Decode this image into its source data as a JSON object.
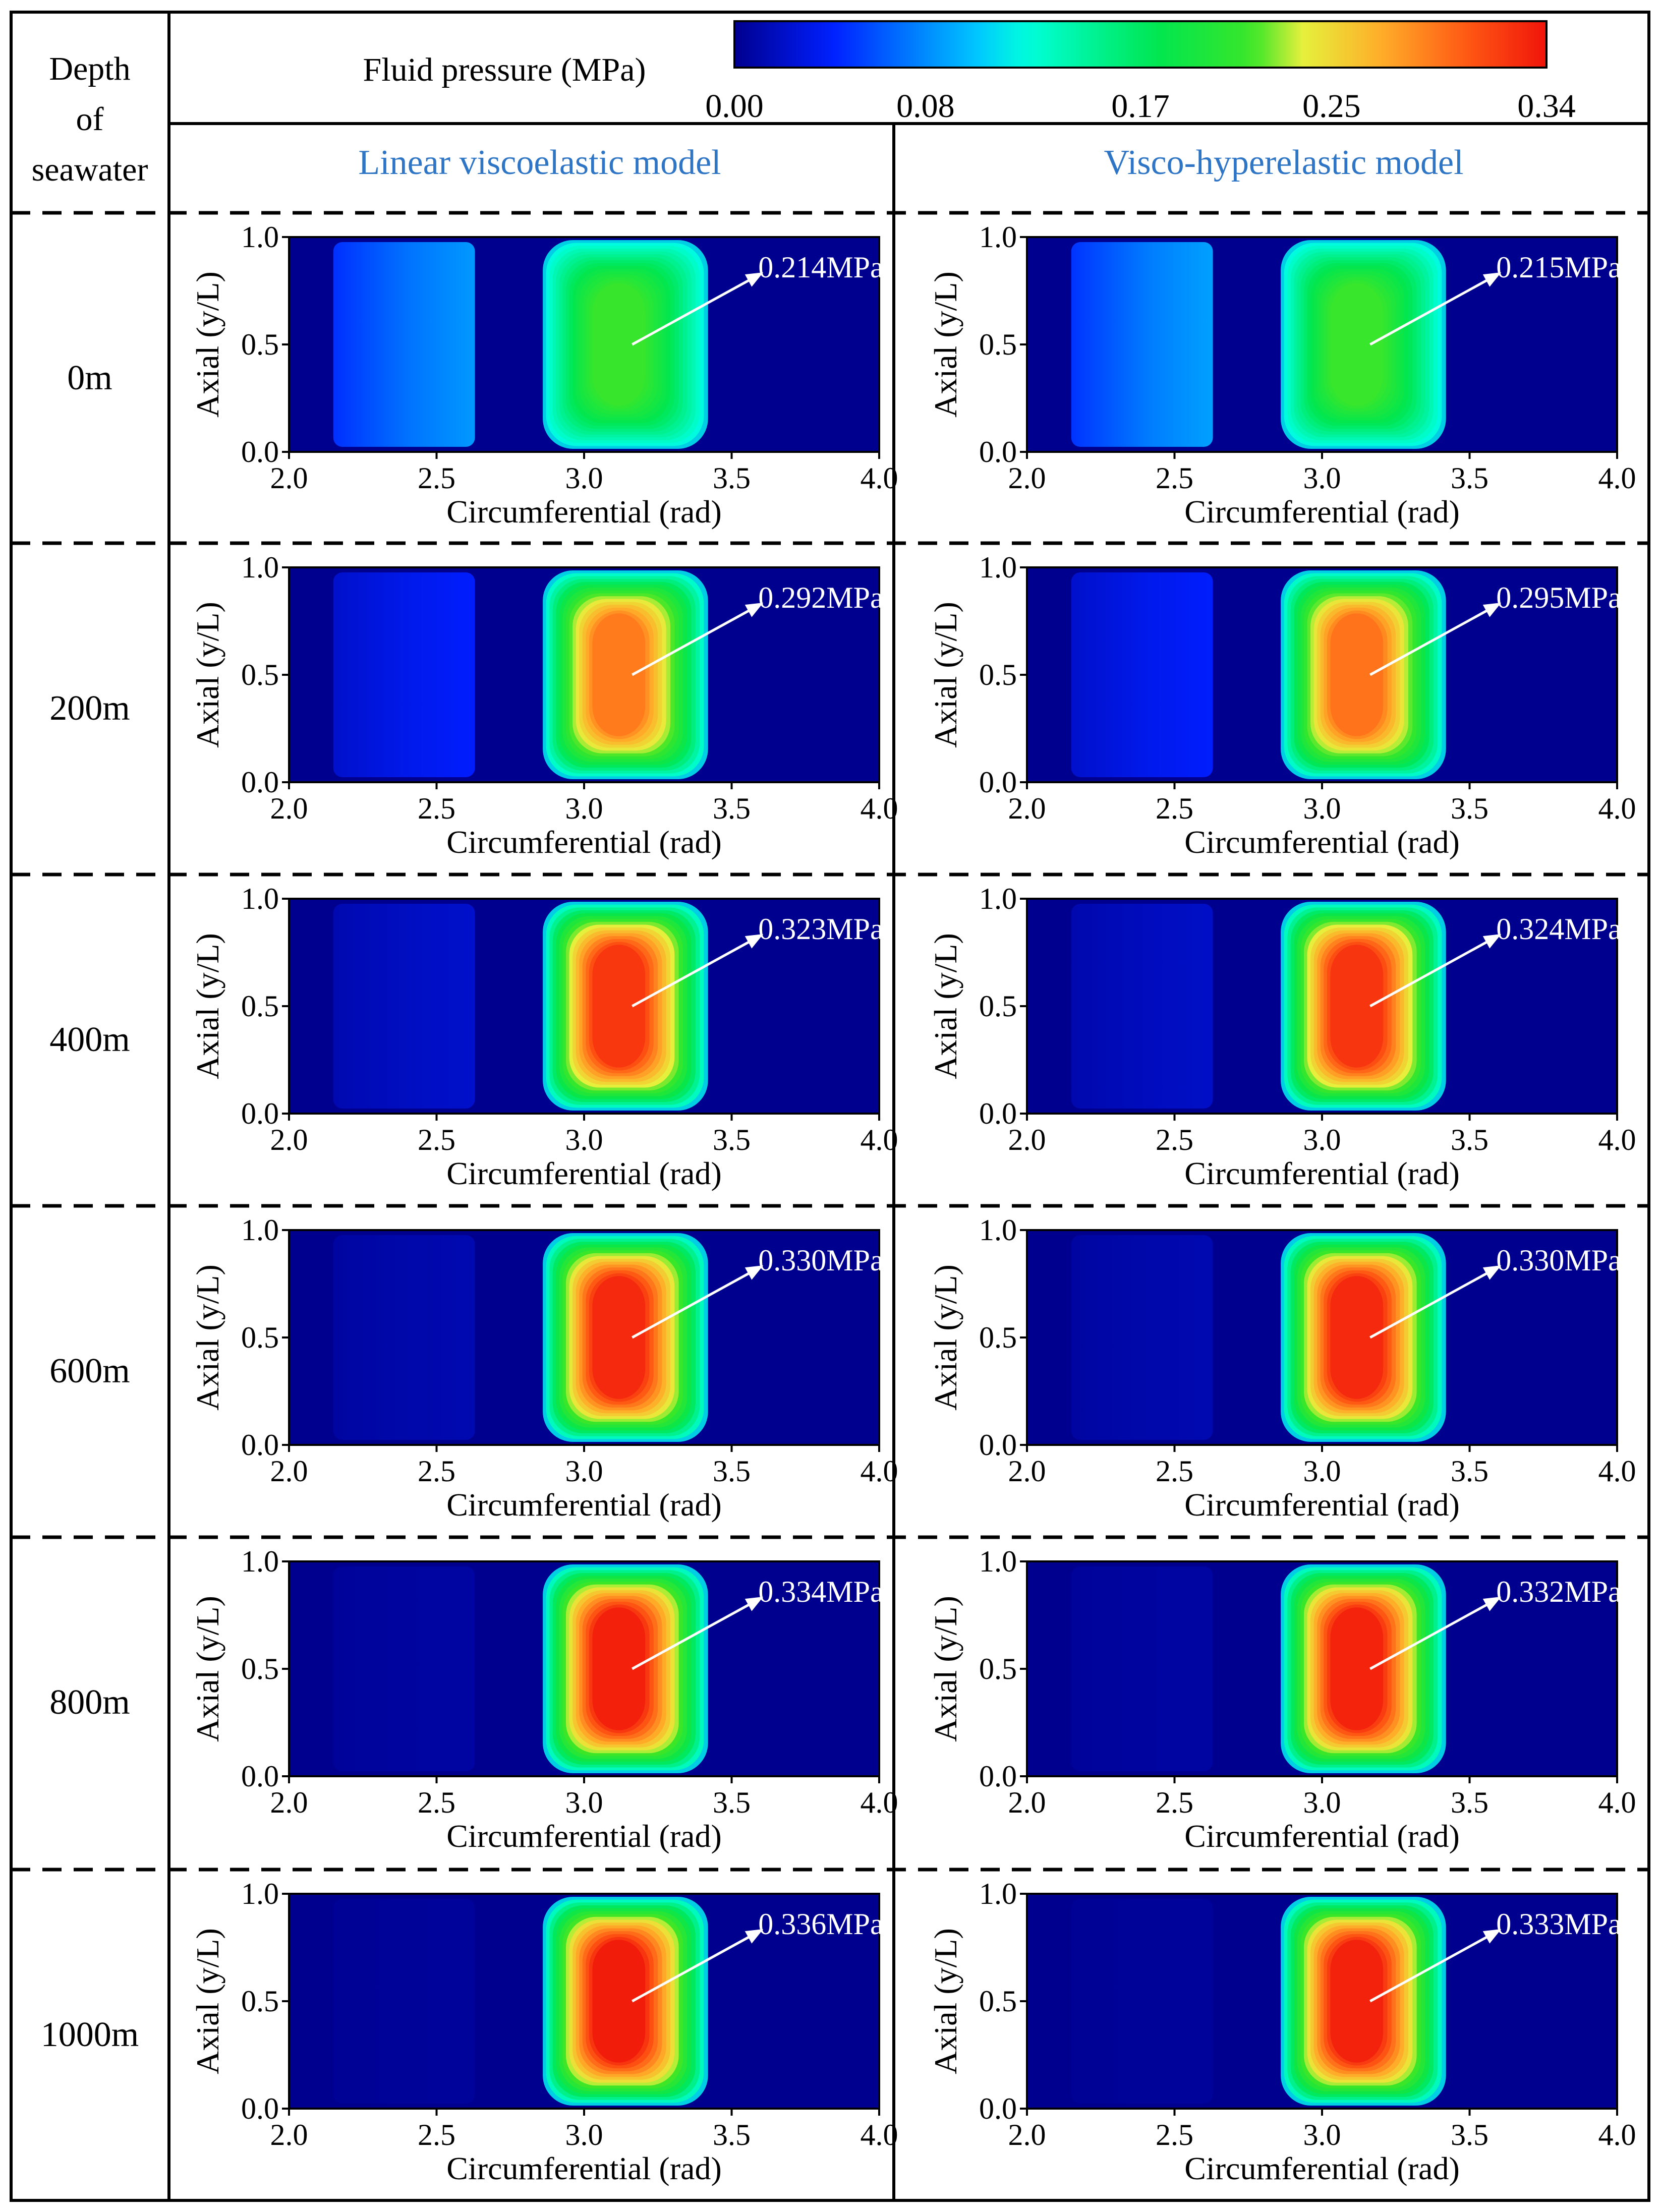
{
  "header": {
    "depth_label": [
      "Depth",
      "of",
      "seawater"
    ],
    "colorbar_title": "Fluid pressure (MPa)",
    "column_titles": [
      "Linear viscoelastic model",
      "Visco-hyperelastic model"
    ]
  },
  "colors": {
    "column_title": "#2E75C6",
    "border": "#000000",
    "annotation": "#FFFFFF",
    "background_field": "#00008F"
  },
  "chart_data": {
    "type": "heatmap",
    "title": "Fluid pressure (MPa)",
    "xlabel": "Circumferential (rad)",
    "ylabel": "Axial (y/L)",
    "xlim": [
      2.0,
      4.0
    ],
    "ylim": [
      0.0,
      1.0
    ],
    "xticks": [
      "2.0",
      "2.5",
      "3.0",
      "3.5",
      "4.0"
    ],
    "yticks": [
      "0.0",
      "0.5",
      "1.0"
    ],
    "colorbar": {
      "min": 0.0,
      "max": 0.34,
      "ticks": [
        "0.00",
        "0.08",
        "0.17",
        "0.25",
        "0.34"
      ],
      "colormap": "jet"
    },
    "models": [
      "Linear viscoelastic model",
      "Visco-hyperelastic model"
    ],
    "depths": [
      "0m",
      "200m",
      "400m",
      "600m",
      "800m",
      "1000m"
    ],
    "peak_pressure_mpa": [
      [
        0.214,
        0.215
      ],
      [
        0.292,
        0.295
      ],
      [
        0.323,
        0.324
      ],
      [
        0.33,
        0.33
      ],
      [
        0.334,
        0.332
      ],
      [
        0.336,
        0.333
      ]
    ],
    "peak_labels": [
      [
        "0.214MPa",
        "0.215MPa"
      ],
      [
        "0.292MPa",
        "0.295MPa"
      ],
      [
        "0.323MPa",
        "0.324MPa"
      ],
      [
        "0.330MPa",
        "0.330MPa"
      ],
      [
        "0.334MPa",
        "0.332MPa"
      ],
      [
        "0.336MPa",
        "0.333MPa"
      ]
    ],
    "secondary_band_pressure_mpa": [
      [
        0.085,
        0.088
      ],
      [
        0.04,
        0.04
      ],
      [
        0.022,
        0.02
      ],
      [
        0.012,
        0.012
      ],
      [
        0.007,
        0.007
      ],
      [
        0.004,
        0.004
      ]
    ],
    "main_band_range_rad": [
      2.86,
      3.42
    ],
    "secondary_band_range_rad": [
      2.15,
      2.63
    ],
    "peak_position": {
      "x_rad": 3.18,
      "y": 0.5
    }
  }
}
